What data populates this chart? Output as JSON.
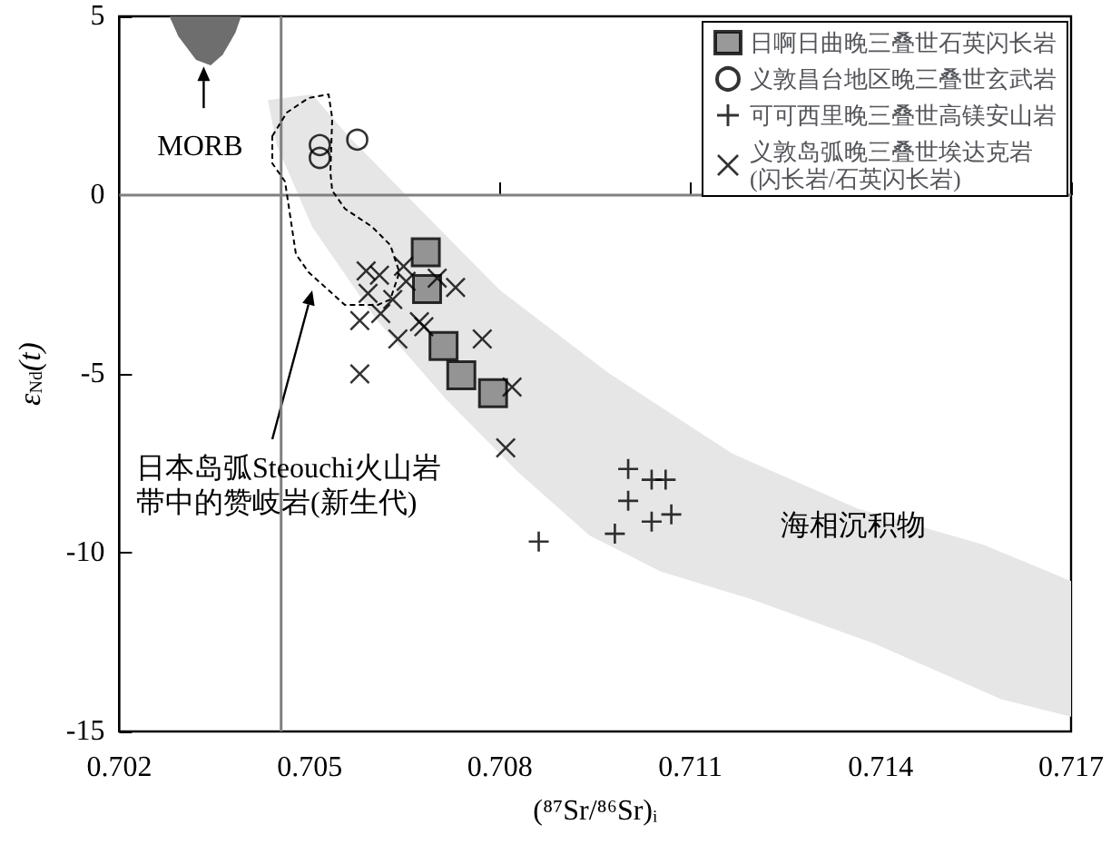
{
  "chart_data": {
    "type": "scatter",
    "xlabel": "(⁸⁷Sr/⁸⁶Sr)ᵢ",
    "ylabel": "ε$_{Nd}$(t)",
    "xlim": [
      0.702,
      0.717
    ],
    "xticks": [
      0.702,
      0.705,
      0.708,
      0.711,
      0.714,
      0.717
    ],
    "ylim": [
      -15,
      5
    ],
    "yticks": [
      -15,
      -10,
      -5,
      0,
      5
    ],
    "grid": false,
    "legend": "top right",
    "series": [
      {
        "type": "area",
        "color": "#e6e6e6",
        "x": [
          0.70434,
          0.70504,
          0.70561,
          0.70687,
          0.708,
          0.70969,
          0.71166,
          0.71363,
          0.71561,
          0.717,
          0.717,
          0.71589,
          0.71392,
          0.71194,
          0.71054,
          0.70941,
          0.70828,
          0.70715,
          0.70603,
          0.70504,
          0.70448
        ],
        "values": [
          2.66,
          2.82,
          1.65,
          -0.63,
          -2.66,
          -4.95,
          -7.23,
          -8.76,
          -9.77,
          -10.79,
          -14.59,
          -14.09,
          -12.56,
          -11.29,
          -10.53,
          -9.52,
          -7.74,
          -5.71,
          -3.43,
          -0.89,
          1.4
        ]
      },
      {
        "type": "area",
        "color": "#6e6e6e",
        "x": [
          0.70279,
          0.70293,
          0.70321,
          0.70344,
          0.70363,
          0.70383,
          0.70392
        ],
        "values": [
          5,
          4.44,
          3.78,
          3.63,
          3.93,
          4.54,
          5
        ]
      },
      {
        "name": "日啊日曲晚三叠世石英闪长岩",
        "marker": "square",
        "color": "#808080",
        "x": [
          0.70683,
          0.70685,
          0.70711,
          0.70739,
          0.70789
        ],
        "values": [
          -1.6,
          -2.63,
          -4.22,
          -5.04,
          -5.54
        ]
      },
      {
        "name": "义敦昌台地区晚三叠世玄武岩",
        "marker": "circle",
        "color": "#000000",
        "x": [
          0.70516,
          0.70516,
          0.70575
        ],
        "values": [
          1.4,
          1.04,
          1.55
        ]
      },
      {
        "name": "可可西里晚三叠世高镁安山岩",
        "marker": "plus",
        "color": "#000000",
        "x": [
          0.71002,
          0.71039,
          0.71061,
          0.71002,
          0.71039,
          0.7107,
          0.70981,
          0.70861
        ],
        "values": [
          -7.66,
          -7.96,
          -7.96,
          -8.55,
          -9.13,
          -8.93,
          -9.47,
          -9.69
        ]
      },
      {
        "name": "义敦岛弧晚三叠世埃达克岩\n(闪长岩/石英闪长岩)",
        "marker": "cross",
        "color": "#000000",
        "x": [
          0.70589,
          0.7061,
          0.70592,
          0.70579,
          0.70612,
          0.70631,
          0.70648,
          0.70652,
          0.70673,
          0.7068,
          0.70639,
          0.70579,
          0.70701,
          0.7073,
          0.70772,
          0.70819,
          0.70809
        ],
        "values": [
          -2.12,
          -2.24,
          -2.75,
          -3.51,
          -3.31,
          -2.92,
          -1.99,
          -2.41,
          -3.54,
          -3.68,
          -4.02,
          -5.0,
          -2.32,
          -2.58,
          -4.02,
          -5.37,
          -7.07
        ]
      }
    ],
    "ref_lines": [
      {
        "axis": "x",
        "value": 0.70455,
        "color": "#808080"
      },
      {
        "axis": "y",
        "value": 0,
        "color": "#808080"
      }
    ],
    "annotations": [
      {
        "text": "MORB",
        "x": 0.70333,
        "y": 3.6
      },
      "日本岛弧Steouchi火山岩带中的赞岐岩(新生代)",
      "海相沉积物"
    ]
  }
}
